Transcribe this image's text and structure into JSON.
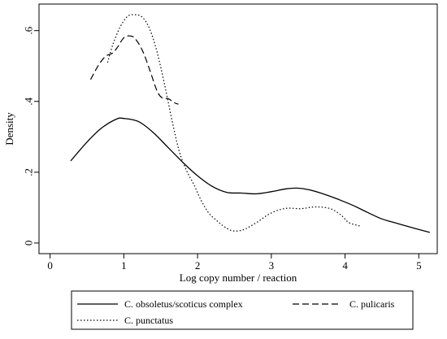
{
  "chart_data": {
    "type": "line",
    "xlabel": "Log copy number / reaction",
    "ylabel": "Density",
    "xlim": [
      -0.15,
      5.25
    ],
    "ylim": [
      -0.03,
      0.675
    ],
    "x_ticks": [
      0,
      1,
      2,
      3,
      4,
      5
    ],
    "x_tick_labels": [
      "0",
      "1",
      "2",
      "3",
      "4",
      "5"
    ],
    "y_ticks": [
      0,
      0.2,
      0.4,
      0.6
    ],
    "y_tick_labels": [
      "0",
      ".2",
      ".4",
      ".6"
    ],
    "grid": false,
    "legend_position": "bottom",
    "series": [
      {
        "name": "C. obsoletus/scoticus complex",
        "dash": "solid",
        "points": [
          [
            0.28,
            0.232
          ],
          [
            0.5,
            0.285
          ],
          [
            0.7,
            0.325
          ],
          [
            0.9,
            0.35
          ],
          [
            1.0,
            0.352
          ],
          [
            1.2,
            0.343
          ],
          [
            1.4,
            0.312
          ],
          [
            1.6,
            0.27
          ],
          [
            1.8,
            0.228
          ],
          [
            2.0,
            0.19
          ],
          [
            2.2,
            0.16
          ],
          [
            2.4,
            0.143
          ],
          [
            2.6,
            0.141
          ],
          [
            2.8,
            0.139
          ],
          [
            3.0,
            0.145
          ],
          [
            3.2,
            0.153
          ],
          [
            3.35,
            0.155
          ],
          [
            3.5,
            0.151
          ],
          [
            3.7,
            0.139
          ],
          [
            3.9,
            0.124
          ],
          [
            4.1,
            0.107
          ],
          [
            4.3,
            0.087
          ],
          [
            4.5,
            0.068
          ],
          [
            4.7,
            0.056
          ],
          [
            4.9,
            0.044
          ],
          [
            5.15,
            0.03
          ]
        ]
      },
      {
        "name": "C. pulicaris",
        "dash": "dash",
        "points": [
          [
            0.55,
            0.462
          ],
          [
            0.65,
            0.5
          ],
          [
            0.75,
            0.527
          ],
          [
            0.85,
            0.537
          ],
          [
            0.92,
            0.555
          ],
          [
            1.0,
            0.58
          ],
          [
            1.08,
            0.585
          ],
          [
            1.15,
            0.578
          ],
          [
            1.25,
            0.545
          ],
          [
            1.35,
            0.49
          ],
          [
            1.45,
            0.43
          ],
          [
            1.52,
            0.41
          ],
          [
            1.6,
            0.408
          ],
          [
            1.68,
            0.397
          ],
          [
            1.74,
            0.392
          ]
        ]
      },
      {
        "name": "C. punctatus",
        "dash": "dot",
        "points": [
          [
            0.78,
            0.51
          ],
          [
            0.85,
            0.56
          ],
          [
            0.95,
            0.61
          ],
          [
            1.05,
            0.64
          ],
          [
            1.15,
            0.645
          ],
          [
            1.25,
            0.638
          ],
          [
            1.35,
            0.605
          ],
          [
            1.45,
            0.54
          ],
          [
            1.55,
            0.45
          ],
          [
            1.65,
            0.35
          ],
          [
            1.75,
            0.26
          ],
          [
            1.85,
            0.205
          ],
          [
            1.95,
            0.165
          ],
          [
            2.05,
            0.12
          ],
          [
            2.15,
            0.085
          ],
          [
            2.25,
            0.065
          ],
          [
            2.35,
            0.048
          ],
          [
            2.45,
            0.036
          ],
          [
            2.55,
            0.034
          ],
          [
            2.65,
            0.04
          ],
          [
            2.8,
            0.058
          ],
          [
            3.0,
            0.085
          ],
          [
            3.2,
            0.098
          ],
          [
            3.4,
            0.097
          ],
          [
            3.6,
            0.102
          ],
          [
            3.8,
            0.097
          ],
          [
            3.95,
            0.078
          ],
          [
            4.05,
            0.058
          ],
          [
            4.2,
            0.048
          ]
        ]
      }
    ]
  }
}
